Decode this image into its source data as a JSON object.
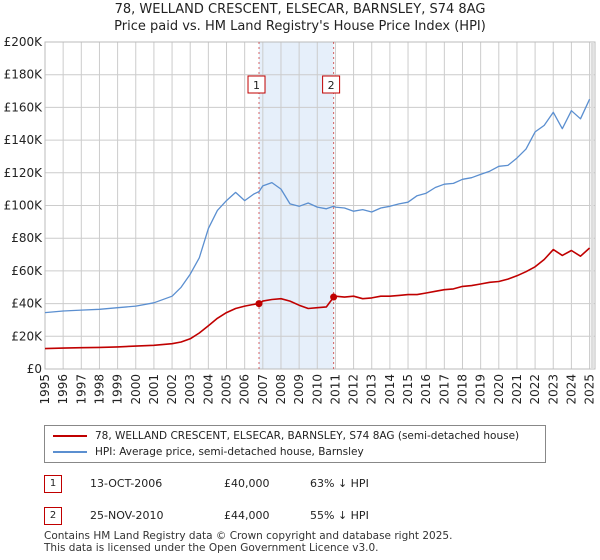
{
  "title_line1": "78, WELLAND CRESCENT, ELSECAR, BARNSLEY, S74 8AG",
  "title_line2": "Price paid vs. HM Land Registry's House Price Index (HPI)",
  "colors": {
    "property": "#c00000",
    "hpi": "#5b8fd0",
    "shade": "#dce8f8",
    "grid": "#cccccc"
  },
  "chart_data": {
    "type": "line",
    "title": "Price paid vs. HM Land Registry's House Price Index (HPI)",
    "xlim": [
      1995,
      2025.3
    ],
    "ylim": [
      0,
      200000
    ],
    "y_ticks": [
      0,
      20000,
      40000,
      60000,
      80000,
      100000,
      120000,
      140000,
      160000,
      180000,
      200000
    ],
    "y_tick_labels": [
      "£0",
      "£20K",
      "£40K",
      "£60K",
      "£80K",
      "£100K",
      "£120K",
      "£140K",
      "£160K",
      "£180K",
      "£200K"
    ],
    "x_tick_labels": [
      "1995",
      "1996",
      "1997",
      "1998",
      "1999",
      "2000",
      "2001",
      "2002",
      "2003",
      "2004",
      "2005",
      "2006",
      "2007",
      "2008",
      "2009",
      "2010",
      "2011",
      "2012",
      "2013",
      "2014",
      "2015",
      "2016",
      "2017",
      "2018",
      "2019",
      "2020",
      "2021",
      "2022",
      "2023",
      "2024",
      "2025"
    ],
    "shaded_range": [
      2006.79,
      2010.9
    ],
    "series": [
      {
        "name": "78, WELLAND CRESCENT, ELSECAR, BARNSLEY, S74 8AG (semi-detached house)",
        "x": [
          1995.0,
          1996.0,
          1997.0,
          1998.0,
          1999.0,
          2000.0,
          2001.0,
          2002.0,
          2002.5,
          2003.0,
          2003.5,
          2004.0,
          2004.5,
          2005.0,
          2005.5,
          2006.0,
          2006.5,
          2006.79,
          2007.0,
          2007.5,
          2008.0,
          2008.5,
          2009.0,
          2009.5,
          2010.0,
          2010.5,
          2010.9,
          2011.0,
          2011.5,
          2012.0,
          2012.5,
          2013.0,
          2013.5,
          2014.0,
          2014.5,
          2015.0,
          2015.5,
          2016.0,
          2016.5,
          2017.0,
          2017.5,
          2018.0,
          2018.5,
          2019.0,
          2019.5,
          2020.0,
          2020.5,
          2021.0,
          2021.5,
          2022.0,
          2022.5,
          2023.0,
          2023.5,
          2024.0,
          2024.5,
          2025.0
        ],
        "values": [
          12500,
          12800,
          13000,
          13200,
          13500,
          14000,
          14500,
          15500,
          16500,
          18500,
          22000,
          26500,
          31000,
          34500,
          37000,
          38500,
          39500,
          40000,
          41500,
          42500,
          43000,
          41500,
          39000,
          37000,
          37500,
          38000,
          44000,
          44500,
          44000,
          44500,
          43000,
          43500,
          44500,
          44500,
          45000,
          45500,
          45500,
          46500,
          47500,
          48500,
          49000,
          50500,
          51000,
          52000,
          53000,
          53500,
          55000,
          57000,
          59500,
          62500,
          67000,
          73000,
          69500,
          72500,
          69000,
          74000
        ]
      },
      {
        "name": "HPI: Average price, semi-detached house, Barnsley",
        "x": [
          1995.0,
          1996.0,
          1997.0,
          1998.0,
          1999.0,
          2000.0,
          2001.0,
          2002.0,
          2002.5,
          2003.0,
          2003.5,
          2004.0,
          2004.5,
          2005.0,
          2005.5,
          2006.0,
          2006.5,
          2006.79,
          2007.0,
          2007.5,
          2008.0,
          2008.5,
          2009.0,
          2009.5,
          2010.0,
          2010.5,
          2010.9,
          2011.0,
          2011.5,
          2012.0,
          2012.5,
          2013.0,
          2013.5,
          2014.0,
          2014.5,
          2015.0,
          2015.5,
          2016.0,
          2016.5,
          2017.0,
          2017.5,
          2018.0,
          2018.5,
          2019.0,
          2019.5,
          2020.0,
          2020.5,
          2021.0,
          2021.5,
          2022.0,
          2022.5,
          2023.0,
          2023.5,
          2024.0,
          2024.5,
          2025.0
        ],
        "values": [
          34500,
          35500,
          36000,
          36500,
          37500,
          38500,
          40500,
          44500,
          50000,
          58000,
          68000,
          86000,
          97000,
          103000,
          108000,
          103000,
          107000,
          108500,
          112000,
          114000,
          110000,
          101000,
          99500,
          101500,
          99000,
          98000,
          99500,
          99000,
          98500,
          96500,
          97500,
          96000,
          98500,
          99500,
          101000,
          102000,
          106000,
          107500,
          111000,
          113000,
          113500,
          116000,
          117000,
          119000,
          121000,
          124000,
          124500,
          129000,
          134500,
          145000,
          149000,
          157000,
          147000,
          158000,
          153000,
          165000
        ]
      }
    ],
    "annotations": [
      {
        "label": "1",
        "x": 2006.79,
        "y": 40000
      },
      {
        "label": "2",
        "x": 2010.9,
        "y": 44000
      }
    ]
  },
  "legend": {
    "property_label": "78, WELLAND CRESCENT, ELSECAR, BARNSLEY, S74 8AG (semi-detached house)",
    "hpi_label": "HPI: Average price, semi-detached house, Barnsley"
  },
  "sales": [
    {
      "label": "1",
      "date": "13-OCT-2006",
      "price": "£40,000",
      "hpi_change": "63% ↓ HPI"
    },
    {
      "label": "2",
      "date": "25-NOV-2010",
      "price": "£44,000",
      "hpi_change": "55% ↓ HPI"
    }
  ],
  "footer_line1": "Contains HM Land Registry data © Crown copyright and database right 2025.",
  "footer_line2": "This data is licensed under the Open Government Licence v3.0."
}
